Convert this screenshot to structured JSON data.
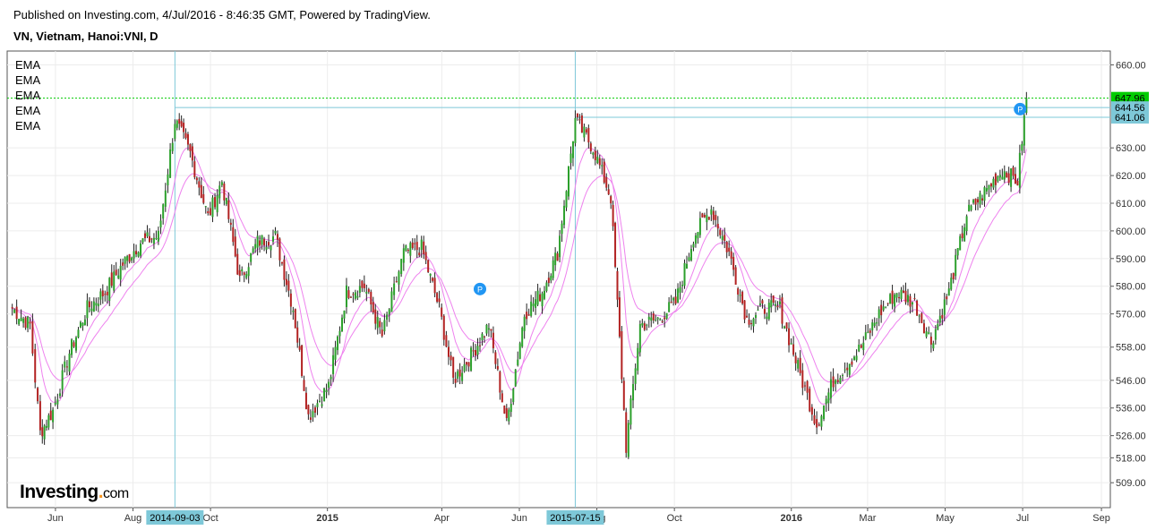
{
  "header": {
    "published": "Published on Investing.com, 4/Jul/2016 - 8:46:35 GMT, Powered by TradingView.",
    "symbol": "VN, Vietnam, Hanoi:VNI, D"
  },
  "legend": [
    "EMA",
    "EMA",
    "EMA",
    "EMA",
    "EMA"
  ],
  "logo": {
    "brand": "Investing",
    "suffix": "com"
  },
  "colors": {
    "up": "#2ca02c",
    "down": "#b22222",
    "ema": "#ee82ee",
    "crosshair": "#7ec8d8",
    "last_price_bg": "#00cc00",
    "marker": "#2196f3"
  },
  "chart_data": {
    "type": "candlestick",
    "title": "VN, Vietnam, Hanoi:VNI, D",
    "x_ticks": [
      "Jun",
      "Aug",
      "Oct",
      "2015",
      "Apr",
      "Jun",
      "Aug",
      "Oct",
      "2016",
      "Mar",
      "May",
      "Jul",
      "Sep"
    ],
    "y_ticks": [
      509,
      518,
      526,
      536,
      546,
      558,
      570,
      580,
      590,
      600,
      610,
      620,
      630,
      660
    ],
    "ylim": [
      500,
      665
    ],
    "highlighted_dates": [
      "2014-09-03",
      "2015-07-15"
    ],
    "price_labels": [
      {
        "value": "647.96",
        "role": "last"
      },
      {
        "value": "644.56",
        "role": "crosshair"
      },
      {
        "value": "641.06",
        "role": "crosshair"
      }
    ],
    "grid": true,
    "series": [
      {
        "kind": "close",
        "points": [
          [
            "2014-04-28",
            572
          ],
          [
            "2014-05-12",
            566
          ],
          [
            "2014-05-20",
            527
          ],
          [
            "2014-05-30",
            535
          ],
          [
            "2014-06-12",
            556
          ],
          [
            "2014-06-26",
            572
          ],
          [
            "2014-07-10",
            578
          ],
          [
            "2014-07-24",
            588
          ],
          [
            "2014-08-07",
            596
          ],
          [
            "2014-08-21",
            598
          ],
          [
            "2014-09-03",
            640
          ],
          [
            "2014-09-15",
            628
          ],
          [
            "2014-09-29",
            605
          ],
          [
            "2014-10-10",
            618
          ],
          [
            "2014-10-24",
            582
          ],
          [
            "2014-11-07",
            596
          ],
          [
            "2014-11-21",
            598
          ],
          [
            "2014-12-05",
            572
          ],
          [
            "2014-12-17",
            533
          ],
          [
            "2015-01-02",
            544
          ],
          [
            "2015-01-16",
            578
          ],
          [
            "2015-01-30",
            580
          ],
          [
            "2015-02-13",
            562
          ],
          [
            "2015-03-02",
            592
          ],
          [
            "2015-03-16",
            594
          ],
          [
            "2015-03-30",
            572
          ],
          [
            "2015-04-10",
            546
          ],
          [
            "2015-04-24",
            555
          ],
          [
            "2015-05-08",
            566
          ],
          [
            "2015-05-22",
            530
          ],
          [
            "2015-06-05",
            570
          ],
          [
            "2015-06-19",
            578
          ],
          [
            "2015-07-01",
            592
          ],
          [
            "2015-07-15",
            640
          ],
          [
            "2015-07-29",
            630
          ],
          [
            "2015-08-12",
            612
          ],
          [
            "2015-08-24",
            522
          ],
          [
            "2015-09-04",
            566
          ],
          [
            "2015-09-18",
            568
          ],
          [
            "2015-10-02",
            574
          ],
          [
            "2015-10-16",
            598
          ],
          [
            "2015-10-30",
            608
          ],
          [
            "2015-11-13",
            592
          ],
          [
            "2015-11-27",
            568
          ],
          [
            "2015-12-11",
            572
          ],
          [
            "2015-12-23",
            572
          ],
          [
            "2016-01-08",
            548
          ],
          [
            "2016-01-21",
            530
          ],
          [
            "2016-02-03",
            546
          ],
          [
            "2016-02-25",
            558
          ],
          [
            "2016-03-10",
            570
          ],
          [
            "2016-03-24",
            578
          ],
          [
            "2016-04-07",
            574
          ],
          [
            "2016-04-20",
            560
          ],
          [
            "2016-05-04",
            578
          ],
          [
            "2016-05-18",
            606
          ],
          [
            "2016-06-01",
            614
          ],
          [
            "2016-06-15",
            622
          ],
          [
            "2016-06-27",
            618
          ],
          [
            "2016-07-04",
            647.96
          ]
        ]
      }
    ],
    "markers": [
      {
        "date": "2015-05-01",
        "value": 579,
        "label": "P"
      },
      {
        "date": "2016-06-29",
        "value": 644,
        "label": "P"
      }
    ]
  }
}
